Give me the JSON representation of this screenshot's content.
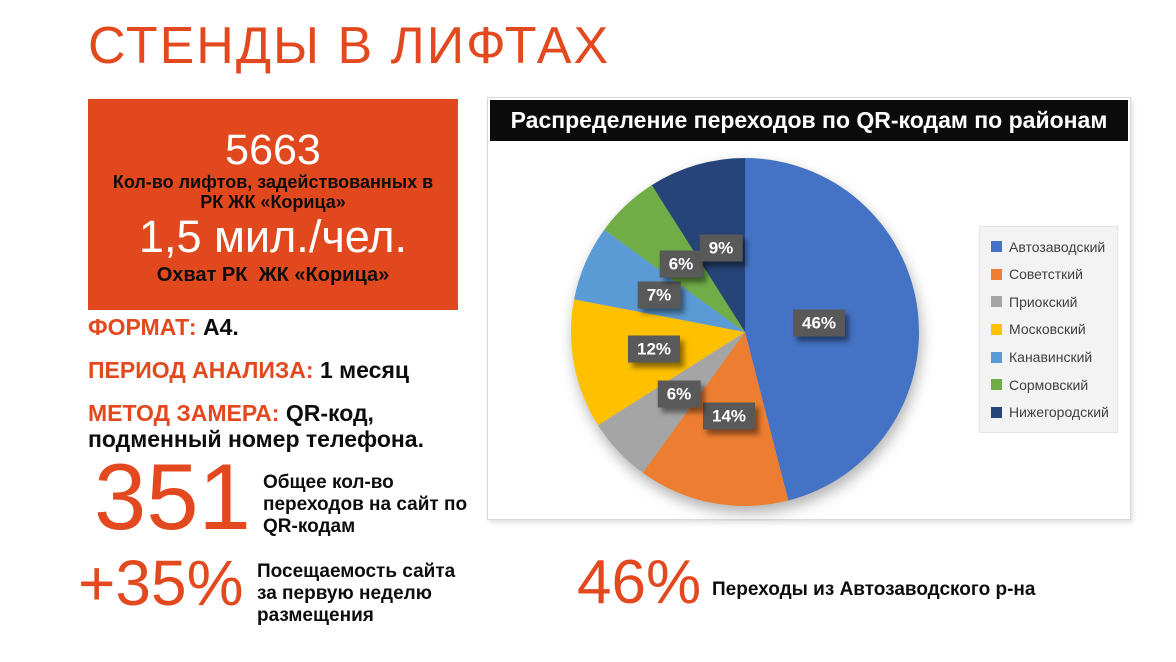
{
  "page": {
    "title": "СТЕНДЫ В ЛИФТАХ"
  },
  "colors": {
    "accent": "#E3491E",
    "card_bg": "#E2481D",
    "chart_header_bg": "#0B0B0B",
    "pie_label_bg": "#595959"
  },
  "stats_card": {
    "value1": "5663",
    "label1": "Кол-во лифтов, задействованных в РК ЖК «Корица»",
    "value2": "1,5 мил./чел.",
    "label2": "Охват РК  ЖК «Корица»"
  },
  "details": [
    {
      "label": "ФОРМАТ:",
      "value": "А4."
    },
    {
      "label": "ПЕРИОД АНАЛИЗА:",
      "value": "1 месяц"
    },
    {
      "label": "МЕТОД ЗАМЕРА:",
      "value": "QR-код, подменный номер телефона."
    }
  ],
  "metrics": {
    "total": {
      "value": "351",
      "caption": "Общее кол-во переходов на сайт по QR-кодам"
    },
    "growth": {
      "value": "+35%",
      "caption": "Посещаемость сайта за первую неделю размещения"
    },
    "share": {
      "value": "46%",
      "caption": "Переходы из Автозаводского р-на"
    }
  },
  "chart_data": {
    "type": "pie",
    "title": "Распределение переходов по QR-кодам по районам",
    "categories": [
      "Автозаводский",
      "Советсткий",
      "Приокский",
      "Московский",
      "Канавинский",
      "Сормовский",
      "Нижегородский"
    ],
    "values": [
      46,
      14,
      6,
      12,
      7,
      6,
      9
    ],
    "unit": "%",
    "data_labels": [
      "46%",
      "14%",
      "6%",
      "12%",
      "7%",
      "6%",
      "9%"
    ],
    "colors": [
      "#4472C4",
      "#ED7D31",
      "#A5A5A5",
      "#FFC000",
      "#5B9BD5",
      "#70AD47",
      "#264478"
    ],
    "legend_position": "right",
    "start_angle_deg": 0,
    "direction": "clockwise",
    "center": [
      257,
      234
    ],
    "radius": 174,
    "label_radii": [
      75,
      86,
      90,
      93,
      94,
      93,
      87
    ]
  }
}
